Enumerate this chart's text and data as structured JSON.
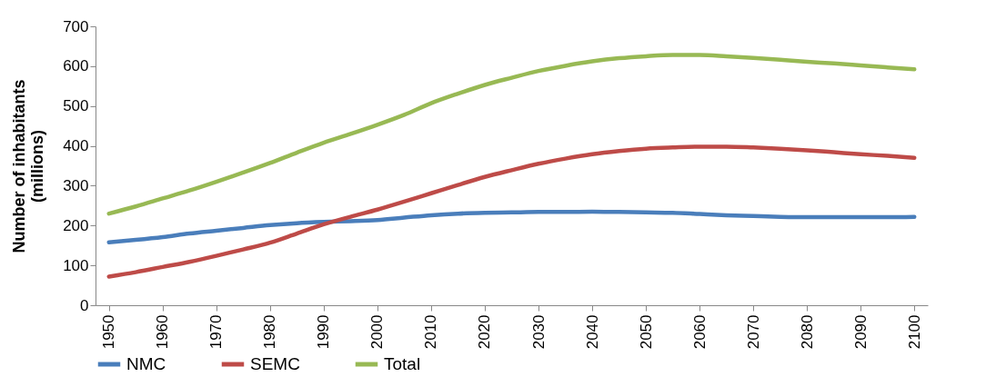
{
  "chart_data": {
    "type": "line",
    "ylabel": "Number of inhabitants\n(millions)",
    "x": [
      1950,
      1955,
      1960,
      1965,
      1970,
      1975,
      1980,
      1985,
      1990,
      1995,
      2000,
      2005,
      2010,
      2015,
      2020,
      2025,
      2030,
      2035,
      2040,
      2045,
      2050,
      2055,
      2060,
      2065,
      2070,
      2075,
      2080,
      2085,
      2090,
      2095,
      2100
    ],
    "xlim": [
      1947.5,
      2102.5
    ],
    "xticks": [
      1950,
      1960,
      1970,
      1980,
      1990,
      2000,
      2010,
      2020,
      2030,
      2040,
      2050,
      2060,
      2070,
      2080,
      2090,
      2100
    ],
    "ylim": [
      0,
      700
    ],
    "yticks": [
      0,
      100,
      200,
      300,
      400,
      500,
      600,
      700
    ],
    "legend": "bottom",
    "line_style": "solid",
    "series": [
      {
        "name": "NMC",
        "color": "#4a7ebb",
        "values": [
          158,
          164,
          171,
          180,
          187,
          194,
          201,
          206,
          209,
          211,
          214,
          220,
          226,
          230,
          232,
          233,
          234,
          234,
          235,
          234,
          233,
          232,
          229,
          226,
          224,
          222,
          221,
          221,
          221,
          221,
          222
        ]
      },
      {
        "name": "SEMC",
        "color": "#be4b48",
        "values": [
          72,
          83,
          96,
          109,
          124,
          140,
          157,
          180,
          203,
          222,
          240,
          260,
          281,
          302,
          322,
          339,
          355,
          368,
          379,
          387,
          393,
          396,
          398,
          398,
          396,
          393,
          389,
          384,
          379,
          375,
          370
        ]
      },
      {
        "name": "Total",
        "color": "#98b954",
        "values": [
          230,
          248,
          268,
          288,
          310,
          333,
          357,
          383,
          408,
          430,
          453,
          478,
          507,
          531,
          553,
          571,
          588,
          601,
          612,
          620,
          625,
          628,
          628,
          625,
          621,
          616,
          611,
          607,
          602,
          597,
          592
        ]
      }
    ]
  }
}
